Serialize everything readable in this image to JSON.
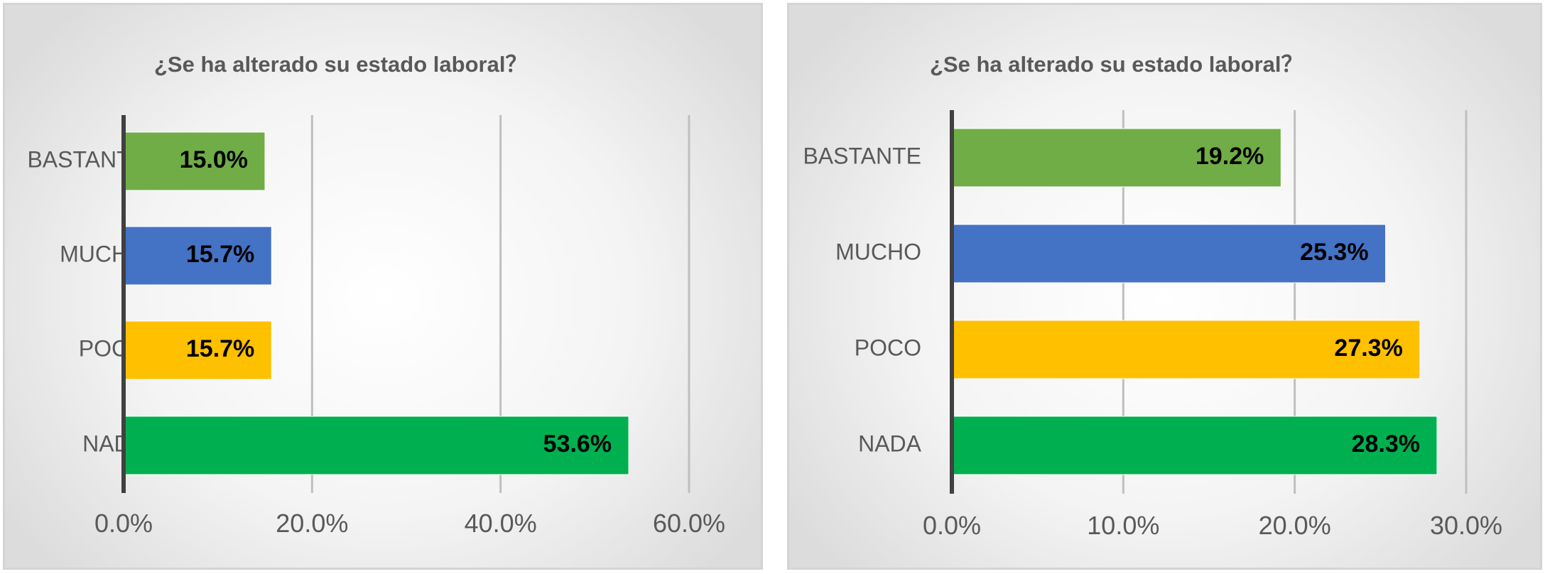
{
  "chart_data": [
    {
      "type": "bar",
      "orientation": "horizontal",
      "title": "¿Se ha alterado su estado laboral？",
      "categories": [
        "BASTANTE",
        "MUCHO",
        "POCO",
        "NADA"
      ],
      "values": [
        15.0,
        15.7,
        15.7,
        53.6
      ],
      "data_labels": [
        "15.0%",
        "15.7%",
        "15.7%",
        "53.6%"
      ],
      "colors": [
        "#70ad47",
        "#4472c4",
        "#ffc000",
        "#00b050"
      ],
      "xlim": [
        0,
        60
      ],
      "xticks": [
        0,
        20,
        40,
        60
      ],
      "xtick_labels": [
        "0.0%",
        "20.0%",
        "40.0%",
        "60.0%"
      ],
      "grid": "vertical",
      "legend": "none",
      "xlabel": "",
      "ylabel": ""
    },
    {
      "type": "bar",
      "orientation": "horizontal",
      "title": "¿Se ha alterado su estado laboral？",
      "categories": [
        "BASTANTE",
        "MUCHO",
        "POCO",
        "NADA"
      ],
      "values": [
        19.2,
        25.3,
        27.3,
        28.3
      ],
      "data_labels": [
        "19.2%",
        "25.3%",
        "27.3%",
        "28.3%"
      ],
      "colors": [
        "#70ad47",
        "#4472c4",
        "#ffc000",
        "#00b050"
      ],
      "xlim": [
        0,
        30
      ],
      "xticks": [
        0,
        10,
        20,
        30
      ],
      "xtick_labels": [
        "0.0%",
        "10.0%",
        "20.0%",
        "30.0%"
      ],
      "grid": "vertical",
      "legend": "none",
      "xlabel": "",
      "ylabel": ""
    }
  ]
}
